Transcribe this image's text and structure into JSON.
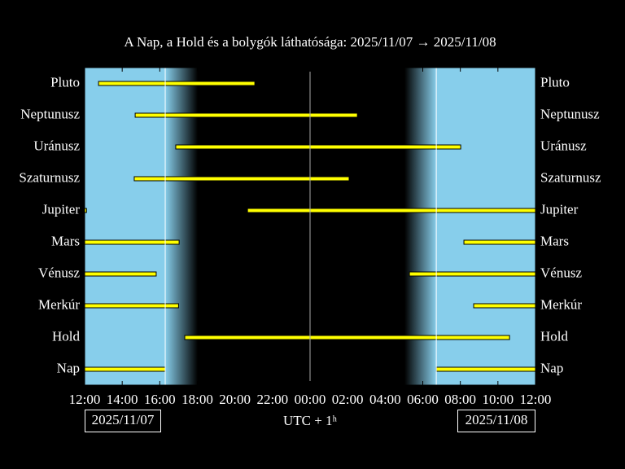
{
  "chart_data": {
    "type": "timeline",
    "title": "A Nap, a Hold és a bolygók láthatósága: 2025/11/07 → 2025/11/08",
    "xlabel": "UTC + 1ʰ",
    "start_date": "2025/11/07",
    "end_date": "2025/11/08",
    "xlim": [
      0,
      24
    ],
    "xticks": [
      {
        "value": 0,
        "label": "12:00"
      },
      {
        "value": 2,
        "label": "14:00"
      },
      {
        "value": 4,
        "label": "16:00"
      },
      {
        "value": 6,
        "label": "18:00"
      },
      {
        "value": 8,
        "label": "20:00"
      },
      {
        "value": 10,
        "label": "22:00"
      },
      {
        "value": 12,
        "label": "00:00"
      },
      {
        "value": 14,
        "label": "02:00"
      },
      {
        "value": 16,
        "label": "04:00"
      },
      {
        "value": 18,
        "label": "06:00"
      },
      {
        "value": 20,
        "label": "08:00"
      },
      {
        "value": 22,
        "label": "10:00"
      },
      {
        "value": 24,
        "label": "12:00"
      }
    ],
    "sky": {
      "sunset": 4.29,
      "dusk": 6.02,
      "dawn": 17.03,
      "sunrise": 18.72,
      "day_color": "#87ceeb",
      "night_color": "#000000"
    },
    "color": "#ffff00",
    "series": [
      {
        "name": "Pluto",
        "segments": [
          [
            0.74,
            9.06
          ]
        ]
      },
      {
        "name": "Neptunusz",
        "segments": [
          [
            2.69,
            14.52
          ]
        ]
      },
      {
        "name": "Uránusz",
        "segments": [
          [
            4.85,
            20.02
          ]
        ]
      },
      {
        "name": "Szaturnusz",
        "segments": [
          [
            2.64,
            14.08
          ]
        ]
      },
      {
        "name": "Jupiter",
        "segments": [
          [
            0,
            0.1
          ],
          [
            8.67,
            24
          ]
        ]
      },
      {
        "name": "Mars",
        "segments": [
          [
            0,
            5.03
          ],
          [
            20.19,
            24
          ]
        ]
      },
      {
        "name": "Vénusz",
        "segments": [
          [
            0,
            3.81
          ],
          [
            17.29,
            24
          ]
        ]
      },
      {
        "name": "Merkúr",
        "segments": [
          [
            0,
            5.0
          ],
          [
            20.71,
            24
          ]
        ]
      },
      {
        "name": "Hold",
        "segments": [
          [
            5.33,
            22.62
          ]
        ]
      },
      {
        "name": "Nap",
        "segments": [
          [
            0,
            4.29
          ],
          [
            18.72,
            24
          ]
        ]
      }
    ]
  }
}
